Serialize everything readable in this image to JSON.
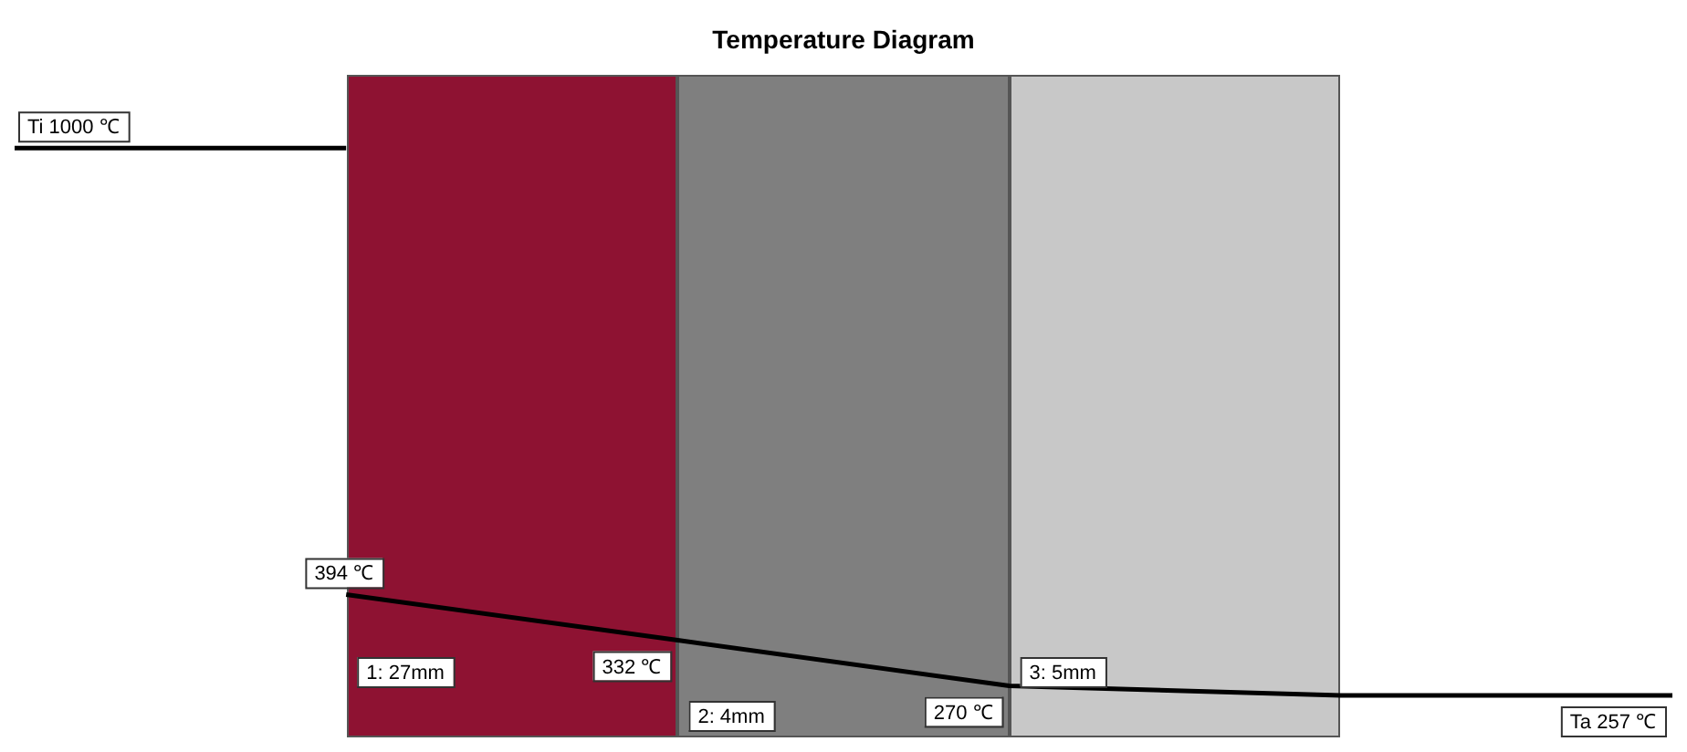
{
  "chart_data": {
    "type": "line",
    "title": "Temperature Diagram",
    "tick_labels": false,
    "legend": false,
    "marker": "none",
    "line_style": "solid",
    "categories": [
      null,
      null,
      null,
      null,
      null,
      null
    ],
    "series": [
      {
        "color": "#000000",
        "values": [
          1000,
          1000,
          null,
          null,
          null,
          null
        ],
        "value_labels": [
          "Ti 1000 ℃",
          null,
          null,
          null,
          null,
          null
        ]
      },
      {
        "color": "#000000",
        "values": [
          null,
          394,
          332,
          270,
          257,
          257
        ],
        "value_labels": [
          null,
          "394 ℃",
          "332 ℃",
          "270 ℃",
          null,
          "Ta 257 ℃"
        ]
      }
    ],
    "annotations": [
      "1: 27mm",
      "2: 4mm",
      "3: 5mm"
    ]
  }
}
